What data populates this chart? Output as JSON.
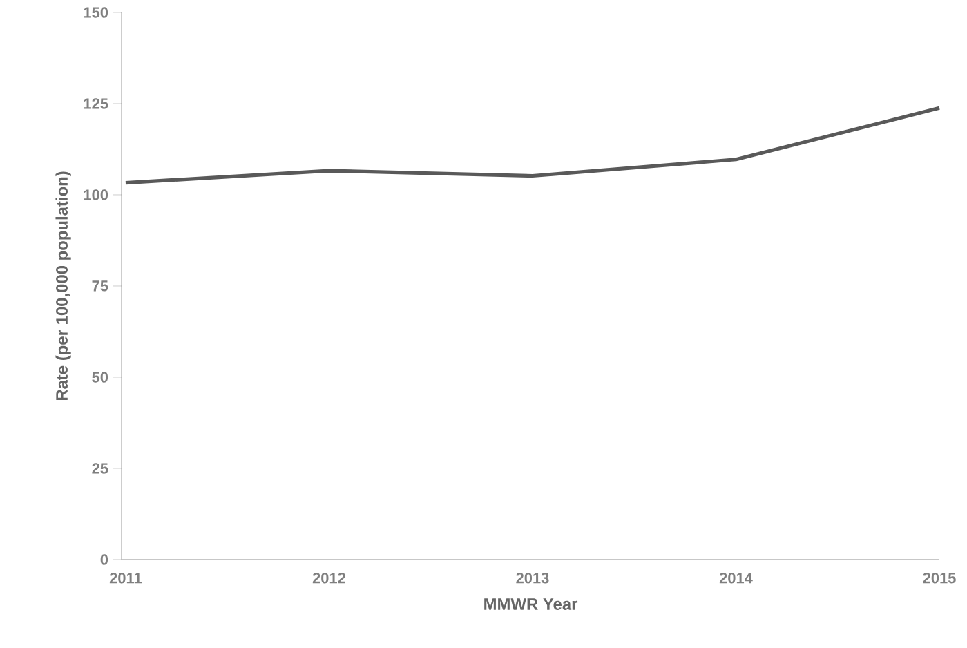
{
  "chart_data": {
    "type": "line",
    "xlabel": "MMWR Year",
    "ylabel": "Rate (per 100,000 population)",
    "categories": [
      "2011",
      "2012",
      "2013",
      "2014",
      "2015"
    ],
    "series": [
      {
        "color": "#595959",
        "values": [
          103.3,
          106.6,
          105.2,
          109.7,
          123.8
        ]
      }
    ],
    "ylim": [
      0,
      150
    ],
    "yticks": [
      0,
      25,
      50,
      75,
      100,
      125,
      150
    ],
    "grid": false,
    "marker": "none",
    "line_style": "solid"
  }
}
